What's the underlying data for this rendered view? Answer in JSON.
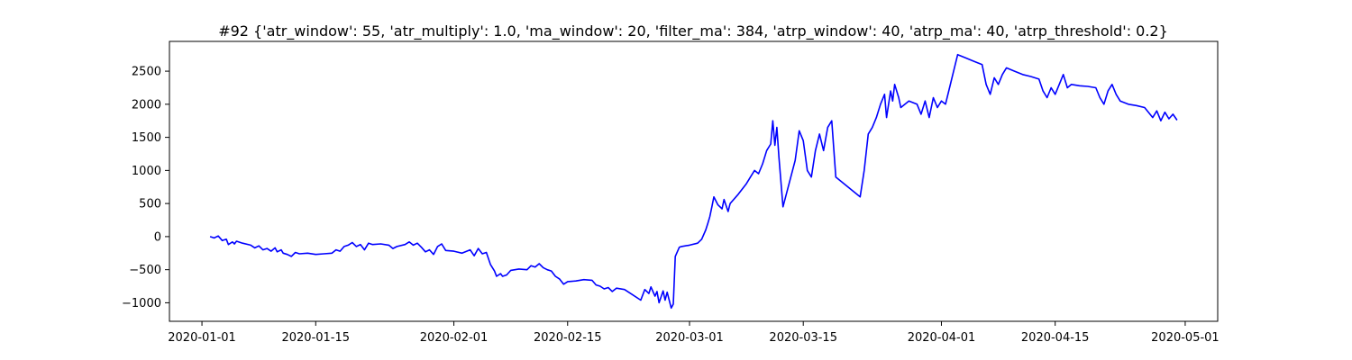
{
  "chart_data": {
    "type": "line",
    "title": "#92 {'atr_window': 55, 'atr_multiply': 1.0, 'ma_window': 20, 'filter_ma': 384, 'atrp_window': 40, 'atrp_ma': 40, 'atrp_threshold': 0.2}",
    "xlabel": "",
    "ylabel": "",
    "xlim": [
      "2019-12-28",
      "2020-05-05"
    ],
    "ylim": [
      -1280,
      2950
    ],
    "x_ticks": [
      "2020-01-01",
      "2020-01-15",
      "2020-02-01",
      "2020-02-15",
      "2020-03-01",
      "2020-03-15",
      "2020-04-01",
      "2020-04-15",
      "2020-05-01"
    ],
    "y_ticks": [
      -1000,
      -500,
      0,
      500,
      1000,
      1500,
      2000,
      2500
    ],
    "grid": false,
    "legend": "none",
    "series": [
      {
        "color": "#0000ff",
        "points": [
          [
            "2020-01-02",
            0
          ],
          [
            "2020-01-02 12:00",
            -20
          ],
          [
            "2020-01-03",
            10
          ],
          [
            "2020-01-03 12:00",
            -60
          ],
          [
            "2020-01-04",
            -40
          ],
          [
            "2020-01-04 06:00",
            -120
          ],
          [
            "2020-01-04 18:00",
            -80
          ],
          [
            "2020-01-05",
            -110
          ],
          [
            "2020-01-05 06:00",
            -70
          ],
          [
            "2020-01-06",
            -100
          ],
          [
            "2020-01-07",
            -130
          ],
          [
            "2020-01-07 12:00",
            -170
          ],
          [
            "2020-01-08",
            -140
          ],
          [
            "2020-01-08 12:00",
            -200
          ],
          [
            "2020-01-09",
            -180
          ],
          [
            "2020-01-09 12:00",
            -220
          ],
          [
            "2020-01-10",
            -170
          ],
          [
            "2020-01-10 06:00",
            -230
          ],
          [
            "2020-01-10 18:00",
            -200
          ],
          [
            "2020-01-11",
            -250
          ],
          [
            "2020-01-11 12:00",
            -270
          ],
          [
            "2020-01-12",
            -300
          ],
          [
            "2020-01-12 12:00",
            -240
          ],
          [
            "2020-01-13",
            -260
          ],
          [
            "2020-01-14",
            -250
          ],
          [
            "2020-01-15",
            -270
          ],
          [
            "2020-01-16",
            -260
          ],
          [
            "2020-01-17",
            -250
          ],
          [
            "2020-01-17 12:00",
            -200
          ],
          [
            "2020-01-18",
            -220
          ],
          [
            "2020-01-18 12:00",
            -150
          ],
          [
            "2020-01-19",
            -130
          ],
          [
            "2020-01-19 12:00",
            -90
          ],
          [
            "2020-01-20",
            -150
          ],
          [
            "2020-01-20 12:00",
            -120
          ],
          [
            "2020-01-21",
            -200
          ],
          [
            "2020-01-21 12:00",
            -100
          ],
          [
            "2020-01-22",
            -120
          ],
          [
            "2020-01-23",
            -110
          ],
          [
            "2020-01-24",
            -130
          ],
          [
            "2020-01-24 12:00",
            -180
          ],
          [
            "2020-01-25",
            -150
          ],
          [
            "2020-01-26",
            -120
          ],
          [
            "2020-01-26 12:00",
            -80
          ],
          [
            "2020-01-27",
            -130
          ],
          [
            "2020-01-27 12:00",
            -100
          ],
          [
            "2020-01-28",
            -160
          ],
          [
            "2020-01-28 12:00",
            -230
          ],
          [
            "2020-01-29",
            -200
          ],
          [
            "2020-01-29 12:00",
            -270
          ],
          [
            "2020-01-30",
            -150
          ],
          [
            "2020-01-30 12:00",
            -110
          ],
          [
            "2020-01-31",
            -210
          ],
          [
            "2020-02-01",
            -220
          ],
          [
            "2020-02-02",
            -250
          ],
          [
            "2020-02-03",
            -200
          ],
          [
            "2020-02-03 12:00",
            -290
          ],
          [
            "2020-02-04",
            -180
          ],
          [
            "2020-02-04 12:00",
            -260
          ],
          [
            "2020-02-05",
            -240
          ],
          [
            "2020-02-05 12:00",
            -420
          ],
          [
            "2020-02-06",
            -520
          ],
          [
            "2020-02-06 06:00",
            -600
          ],
          [
            "2020-02-06 18:00",
            -560
          ],
          [
            "2020-02-07",
            -600
          ],
          [
            "2020-02-07 12:00",
            -580
          ],
          [
            "2020-02-08",
            -510
          ],
          [
            "2020-02-09",
            -490
          ],
          [
            "2020-02-10",
            -500
          ],
          [
            "2020-02-10 12:00",
            -440
          ],
          [
            "2020-02-11",
            -460
          ],
          [
            "2020-02-11 12:00",
            -410
          ],
          [
            "2020-02-12",
            -470
          ],
          [
            "2020-02-12 12:00",
            -500
          ],
          [
            "2020-02-13",
            -520
          ],
          [
            "2020-02-13 12:00",
            -600
          ],
          [
            "2020-02-14",
            -640
          ],
          [
            "2020-02-14 12:00",
            -720
          ],
          [
            "2020-02-15",
            -680
          ],
          [
            "2020-02-16",
            -670
          ],
          [
            "2020-02-17",
            -650
          ],
          [
            "2020-02-18",
            -660
          ],
          [
            "2020-02-18 12:00",
            -730
          ],
          [
            "2020-02-19",
            -750
          ],
          [
            "2020-02-19 12:00",
            -790
          ],
          [
            "2020-02-20",
            -770
          ],
          [
            "2020-02-20 12:00",
            -830
          ],
          [
            "2020-02-21",
            -780
          ],
          [
            "2020-02-22",
            -800
          ],
          [
            "2020-02-23",
            -880
          ],
          [
            "2020-02-24",
            -960
          ],
          [
            "2020-02-24 12:00",
            -800
          ],
          [
            "2020-02-25",
            -860
          ],
          [
            "2020-02-25 06:00",
            -760
          ],
          [
            "2020-02-25 18:00",
            -900
          ],
          [
            "2020-02-26",
            -830
          ],
          [
            "2020-02-26 06:00",
            -1000
          ],
          [
            "2020-02-26 18:00",
            -820
          ],
          [
            "2020-02-27",
            -960
          ],
          [
            "2020-02-27 06:00",
            -840
          ],
          [
            "2020-02-27 18:00",
            -1080
          ],
          [
            "2020-02-28",
            -1020
          ],
          [
            "2020-02-28 06:00",
            -300
          ],
          [
            "2020-02-28 18:00",
            -160
          ],
          [
            "2020-02-29",
            -150
          ],
          [
            "2020-03-01",
            -130
          ],
          [
            "2020-03-02",
            -100
          ],
          [
            "2020-03-02 12:00",
            -40
          ],
          [
            "2020-03-03",
            100
          ],
          [
            "2020-03-03 06:00",
            200
          ],
          [
            "2020-03-03 12:00",
            300
          ],
          [
            "2020-03-03 18:00",
            450
          ],
          [
            "2020-03-04",
            600
          ],
          [
            "2020-03-04 12:00",
            480
          ],
          [
            "2020-03-05",
            420
          ],
          [
            "2020-03-05 06:00",
            560
          ],
          [
            "2020-03-05 18:00",
            380
          ],
          [
            "2020-03-06",
            500
          ],
          [
            "2020-03-07",
            640
          ],
          [
            "2020-03-08",
            800
          ],
          [
            "2020-03-08 12:00",
            900
          ],
          [
            "2020-03-09",
            1000
          ],
          [
            "2020-03-09 12:00",
            950
          ],
          [
            "2020-03-10",
            1100
          ],
          [
            "2020-03-10 12:00",
            1300
          ],
          [
            "2020-03-11",
            1400
          ],
          [
            "2020-03-11 06:00",
            1750
          ],
          [
            "2020-03-11 12:00",
            1380
          ],
          [
            "2020-03-11 18:00",
            1650
          ],
          [
            "2020-03-12",
            1200
          ],
          [
            "2020-03-12 12:00",
            450
          ],
          [
            "2020-03-14",
            1150
          ],
          [
            "2020-03-14 12:00",
            1600
          ],
          [
            "2020-03-15",
            1450
          ],
          [
            "2020-03-15 12:00",
            1000
          ],
          [
            "2020-03-16",
            900
          ],
          [
            "2020-03-16 12:00",
            1300
          ],
          [
            "2020-03-17",
            1550
          ],
          [
            "2020-03-17 12:00",
            1300
          ],
          [
            "2020-03-18",
            1650
          ],
          [
            "2020-03-18 12:00",
            1750
          ],
          [
            "2020-03-19",
            900
          ],
          [
            "2020-03-22",
            600
          ],
          [
            "2020-03-22 12:00",
            1000
          ],
          [
            "2020-03-23",
            1550
          ],
          [
            "2020-03-23 12:00",
            1650
          ],
          [
            "2020-03-24",
            1800
          ],
          [
            "2020-03-24 12:00",
            2000
          ],
          [
            "2020-03-25",
            2150
          ],
          [
            "2020-03-25 06:00",
            1800
          ],
          [
            "2020-03-25 18:00",
            2200
          ],
          [
            "2020-03-26",
            2050
          ],
          [
            "2020-03-26 06:00",
            2300
          ],
          [
            "2020-03-26 18:00",
            2100
          ],
          [
            "2020-03-27",
            1950
          ],
          [
            "2020-03-28",
            2050
          ],
          [
            "2020-03-29",
            2000
          ],
          [
            "2020-03-29 12:00",
            1850
          ],
          [
            "2020-03-30",
            2050
          ],
          [
            "2020-03-30 12:00",
            1800
          ],
          [
            "2020-03-31",
            2100
          ],
          [
            "2020-03-31 12:00",
            1950
          ],
          [
            "2020-04-01",
            2050
          ],
          [
            "2020-04-01 12:00",
            2000
          ],
          [
            "2020-04-02",
            2250
          ],
          [
            "2020-04-02 12:00",
            2500
          ],
          [
            "2020-04-03",
            2750
          ],
          [
            "2020-04-04",
            2700
          ],
          [
            "2020-04-05",
            2650
          ],
          [
            "2020-04-06",
            2600
          ],
          [
            "2020-04-06 12:00",
            2300
          ],
          [
            "2020-04-07",
            2150
          ],
          [
            "2020-04-07 12:00",
            2400
          ],
          [
            "2020-04-08",
            2300
          ],
          [
            "2020-04-08 12:00",
            2450
          ],
          [
            "2020-04-09",
            2550
          ],
          [
            "2020-04-10",
            2500
          ],
          [
            "2020-04-11",
            2450
          ],
          [
            "2020-04-12",
            2420
          ],
          [
            "2020-04-13",
            2380
          ],
          [
            "2020-04-13 12:00",
            2200
          ],
          [
            "2020-04-14",
            2100
          ],
          [
            "2020-04-14 12:00",
            2250
          ],
          [
            "2020-04-15",
            2150
          ],
          [
            "2020-04-15 12:00",
            2300
          ],
          [
            "2020-04-16",
            2450
          ],
          [
            "2020-04-16 12:00",
            2250
          ],
          [
            "2020-04-17",
            2300
          ],
          [
            "2020-04-18",
            2280
          ],
          [
            "2020-04-19",
            2270
          ],
          [
            "2020-04-20",
            2250
          ],
          [
            "2020-04-20 12:00",
            2100
          ],
          [
            "2020-04-21",
            2000
          ],
          [
            "2020-04-21 12:00",
            2200
          ],
          [
            "2020-04-22",
            2300
          ],
          [
            "2020-04-22 12:00",
            2150
          ],
          [
            "2020-04-23",
            2050
          ],
          [
            "2020-04-24",
            2000
          ],
          [
            "2020-04-25",
            1980
          ],
          [
            "2020-04-26",
            1950
          ],
          [
            "2020-04-27",
            1800
          ],
          [
            "2020-04-27 12:00",
            1900
          ],
          [
            "2020-04-28",
            1750
          ],
          [
            "2020-04-28 12:00",
            1880
          ],
          [
            "2020-04-29",
            1780
          ],
          [
            "2020-04-29 12:00",
            1850
          ],
          [
            "2020-04-30",
            1760
          ]
        ]
      }
    ]
  }
}
